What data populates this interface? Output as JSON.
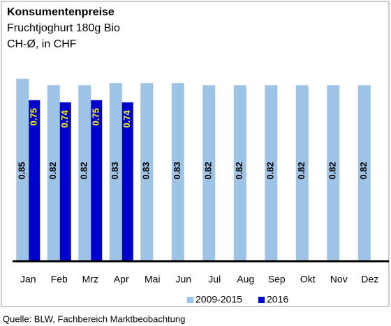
{
  "chart_data": {
    "type": "bar",
    "title": "Konsumentenpreise",
    "subtitle": "Fruchtjoghurt 180g Bio",
    "unit_label": "CH-Ø, in CHF",
    "source": "Quelle: BLW, Fachbereich Marktbeobachtung",
    "categories": [
      "Jan",
      "Feb",
      "Mrz",
      "Apr",
      "Mai",
      "Jun",
      "Jul",
      "Aug",
      "Sep",
      "Okt",
      "Nov",
      "Dez"
    ],
    "series": [
      {
        "name": "2009-2015",
        "color": "#9dc3e6",
        "values": [
          0.85,
          0.82,
          0.82,
          0.83,
          0.83,
          0.83,
          0.82,
          0.82,
          0.82,
          0.82,
          0.82,
          0.82
        ]
      },
      {
        "name": "2016",
        "color": "#0000cc",
        "values": [
          0.75,
          0.74,
          0.75,
          0.74,
          null,
          null,
          null,
          null,
          null,
          null,
          null,
          null
        ]
      }
    ],
    "legend": "bottom"
  }
}
